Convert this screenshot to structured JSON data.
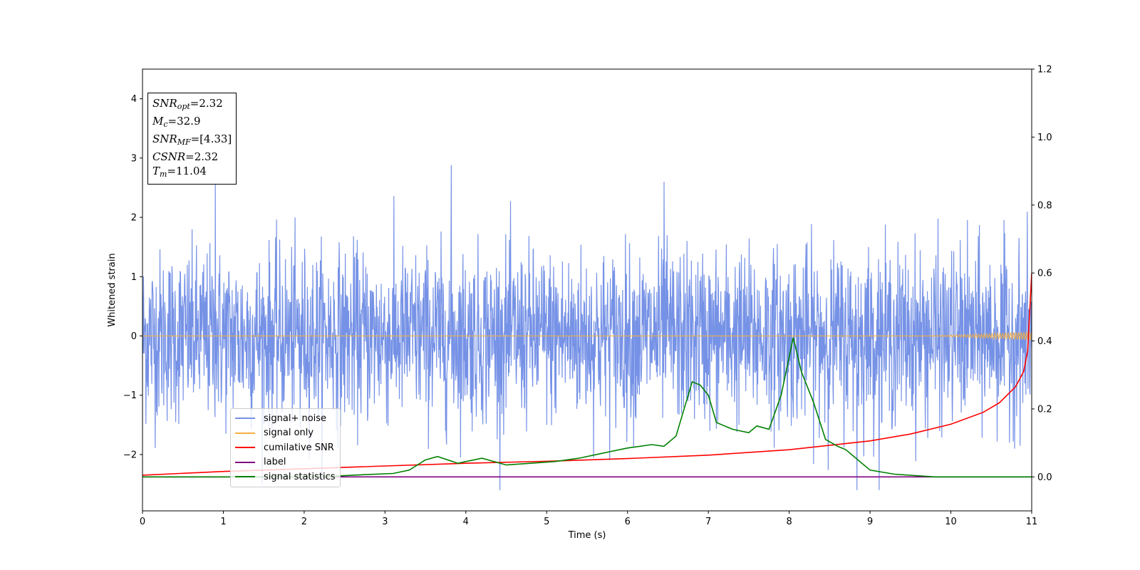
{
  "chart_data": {
    "type": "line",
    "xlabel": "Time (s)",
    "ylabel": "Whitened strain",
    "xlim": [
      0,
      11
    ],
    "ylim_left": [
      -2.95,
      4.5
    ],
    "ylim_right": [
      -0.1,
      1.2
    ],
    "x_ticks": [
      "0",
      "1",
      "2",
      "3",
      "4",
      "5",
      "6",
      "7",
      "8",
      "9",
      "10",
      "11"
    ],
    "y_ticks_left": [
      "−2",
      "−1",
      "0",
      "1",
      "2",
      "3",
      "4"
    ],
    "y_ticks_right": [
      "0.0",
      "0.2",
      "0.4",
      "0.6",
      "0.8",
      "1.0",
      "1.2"
    ],
    "grid": false,
    "legend_position": "lower-left",
    "annotation_box": {
      "rows": [
        {
          "sym": "SNR",
          "sub": "opt",
          "value": "=2.32"
        },
        {
          "sym": "M",
          "sub": "c",
          "value": "=32.9"
        },
        {
          "sym": "SNR",
          "sub": "MF",
          "value": "=[4.33]"
        },
        {
          "sym": "CSNR",
          "sub": "",
          "value": "=2.32"
        },
        {
          "sym": "T",
          "sub": "m",
          "value": "=11.04"
        }
      ]
    },
    "series": [
      {
        "name": "signal+ noise",
        "axis": "left",
        "color": "#7692e6",
        "kind": "noise",
        "mean": 0.0,
        "approx_band": [
          -2.6,
          2.9
        ],
        "approx_extremes": [
          [
            0.9,
            2.7
          ],
          [
            3.82,
            2.88
          ],
          [
            8.84,
            -2.6
          ],
          [
            6.45,
            2.6
          ],
          [
            1.95,
            -1.55
          ]
        ]
      },
      {
        "name": "signal only",
        "axis": "left",
        "color": "#f5b041",
        "kind": "chirp",
        "mean": 0.0,
        "final_amplitude": 0.08
      },
      {
        "name": "cumilative SNR",
        "axis": "right",
        "color": "#ff0000",
        "x": [
          0,
          1,
          2,
          3,
          4,
          5,
          6,
          7,
          8,
          9,
          9.5,
          10,
          10.4,
          10.6,
          10.8,
          10.9,
          10.95,
          11
        ],
        "y": [
          0.005,
          0.016,
          0.024,
          0.032,
          0.04,
          0.046,
          0.054,
          0.064,
          0.08,
          0.106,
          0.126,
          0.155,
          0.19,
          0.218,
          0.265,
          0.31,
          0.37,
          0.6
        ]
      },
      {
        "name": "label",
        "axis": "right",
        "color": "#800080",
        "x": [
          0,
          11
        ],
        "y": [
          0.0,
          0.0
        ]
      },
      {
        "name": "signal statistics",
        "axis": "right",
        "color": "#008000",
        "x": [
          0,
          2.2,
          2.6,
          3.1,
          3.3,
          3.5,
          3.65,
          3.9,
          4.2,
          4.5,
          4.8,
          5.1,
          5.4,
          5.6,
          5.8,
          6.0,
          6.3,
          6.45,
          6.6,
          6.8,
          6.9,
          7.0,
          7.1,
          7.3,
          7.5,
          7.6,
          7.75,
          7.9,
          8.05,
          8.15,
          8.3,
          8.45,
          8.6,
          8.7,
          8.85,
          9.0,
          9.3,
          9.8,
          11
        ],
        "y": [
          0.0,
          0.0,
          0.005,
          0.01,
          0.02,
          0.05,
          0.06,
          0.04,
          0.055,
          0.035,
          0.04,
          0.045,
          0.055,
          0.065,
          0.075,
          0.085,
          0.095,
          0.09,
          0.12,
          0.28,
          0.27,
          0.24,
          0.16,
          0.14,
          0.13,
          0.15,
          0.14,
          0.24,
          0.41,
          0.31,
          0.22,
          0.11,
          0.09,
          0.08,
          0.05,
          0.02,
          0.008,
          0.0,
          0.0
        ]
      }
    ]
  }
}
